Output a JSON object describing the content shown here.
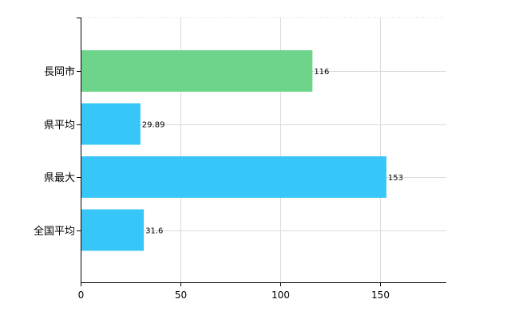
{
  "chart_data": {
    "type": "bar",
    "orientation": "horizontal",
    "categories": [
      "長岡市",
      "県平均",
      "県最大",
      "全国平均"
    ],
    "values": [
      116,
      29.89,
      153,
      31.6
    ],
    "value_labels": [
      "116",
      "29.89",
      "153",
      "31.6"
    ],
    "bar_colors": [
      "#6dd48b",
      "#38c5f7",
      "#38c5f7",
      "#38c5f7"
    ],
    "xlim": [
      0,
      183
    ],
    "xticks": [
      0,
      50,
      100,
      150
    ],
    "xtick_labels": [
      "0",
      "50",
      "100",
      "150"
    ],
    "grid": true,
    "legend": "none"
  }
}
